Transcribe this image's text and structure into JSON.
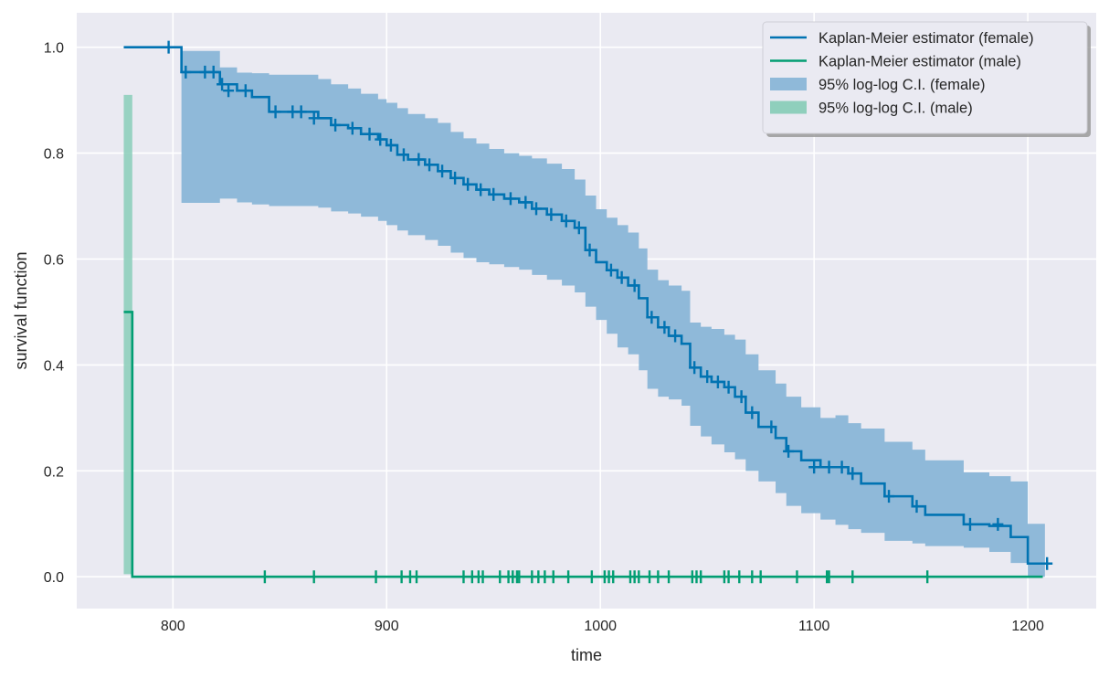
{
  "chart_data": {
    "type": "line",
    "title": "",
    "xlabel": "time",
    "ylabel": "survival function",
    "xlim": [
      755,
      1232
    ],
    "ylim": [
      -0.06,
      1.065
    ],
    "xticks": [
      800,
      900,
      1000,
      1100,
      1200
    ],
    "yticks": [
      0.0,
      0.2,
      0.4,
      0.6,
      0.8,
      1.0
    ],
    "grid": true,
    "legend_position": "top-right",
    "colors": {
      "background": "#EAEAF2",
      "grid": "#FFFFFF",
      "female": "#0173B2",
      "male": "#029E73",
      "female_ci": "#8FB9D9",
      "male_ci": "#8FCFBC"
    },
    "legend": [
      {
        "label": "Kaplan-Meier estimator (female)",
        "kind": "line",
        "series": "female"
      },
      {
        "label": "Kaplan-Meier estimator (male)",
        "kind": "line",
        "series": "male"
      },
      {
        "label": "95% log-log C.I. (female)",
        "kind": "patch",
        "series": "female_ci"
      },
      {
        "label": "95% log-log C.I. (male)",
        "kind": "patch",
        "series": "male_ci"
      }
    ],
    "series": [
      {
        "name": "Kaplan-Meier estimator (female)",
        "key": "female",
        "step": "post",
        "x": [
          777,
          804,
          822,
          830,
          837,
          845,
          868,
          874,
          882,
          888,
          896,
          900,
          905,
          910,
          918,
          924,
          930,
          936,
          942,
          948,
          955,
          962,
          968,
          975,
          982,
          988,
          993,
          998,
          1003,
          1008,
          1013,
          1018,
          1022,
          1027,
          1032,
          1038,
          1042,
          1047,
          1052,
          1058,
          1063,
          1068,
          1074,
          1082,
          1087,
          1094,
          1103,
          1110,
          1116,
          1122,
          1133,
          1146,
          1152,
          1170,
          1182,
          1192,
          1200,
          1208
        ],
        "y": [
          1.0,
          0.953,
          0.93,
          0.918,
          0.906,
          0.878,
          0.866,
          0.853,
          0.847,
          0.836,
          0.826,
          0.815,
          0.797,
          0.788,
          0.778,
          0.766,
          0.753,
          0.741,
          0.731,
          0.722,
          0.714,
          0.707,
          0.695,
          0.684,
          0.672,
          0.659,
          0.617,
          0.594,
          0.579,
          0.565,
          0.55,
          0.526,
          0.49,
          0.471,
          0.455,
          0.44,
          0.395,
          0.378,
          0.368,
          0.358,
          0.34,
          0.31,
          0.283,
          0.262,
          0.237,
          0.22,
          0.207,
          0.207,
          0.195,
          0.176,
          0.152,
          0.133,
          0.117,
          0.099,
          0.096,
          0.075,
          0.025,
          0.025
        ],
        "ci_lower": [
          0.999,
          0.706,
          0.714,
          0.707,
          0.703,
          0.7,
          0.697,
          0.69,
          0.686,
          0.68,
          0.672,
          0.664,
          0.654,
          0.645,
          0.636,
          0.625,
          0.612,
          0.602,
          0.594,
          0.59,
          0.585,
          0.58,
          0.57,
          0.561,
          0.55,
          0.537,
          0.51,
          0.485,
          0.459,
          0.433,
          0.42,
          0.39,
          0.355,
          0.34,
          0.335,
          0.323,
          0.285,
          0.265,
          0.25,
          0.235,
          0.222,
          0.2,
          0.18,
          0.158,
          0.134,
          0.12,
          0.108,
          0.098,
          0.09,
          0.083,
          0.068,
          0.063,
          0.058,
          0.055,
          0.047,
          0.026,
          0.0,
          0.0
        ],
        "ci_upper": [
          1.0,
          0.993,
          0.962,
          0.952,
          0.951,
          0.948,
          0.94,
          0.93,
          0.922,
          0.912,
          0.902,
          0.895,
          0.885,
          0.874,
          0.866,
          0.857,
          0.84,
          0.828,
          0.818,
          0.808,
          0.8,
          0.795,
          0.79,
          0.78,
          0.77,
          0.75,
          0.72,
          0.694,
          0.678,
          0.664,
          0.65,
          0.62,
          0.58,
          0.56,
          0.55,
          0.54,
          0.48,
          0.472,
          0.468,
          0.457,
          0.448,
          0.42,
          0.39,
          0.365,
          0.34,
          0.32,
          0.3,
          0.305,
          0.29,
          0.28,
          0.255,
          0.24,
          0.22,
          0.197,
          0.19,
          0.18,
          0.1,
          0.1
        ]
      },
      {
        "name": "Kaplan-Meier estimator (male)",
        "key": "male",
        "step": "post",
        "x": [
          777,
          781,
          1207
        ],
        "y": [
          0.5,
          0.0,
          0.0
        ],
        "ci_lower": [
          0.005,
          0.0,
          0.0
        ],
        "ci_upper": [
          0.91,
          0.0,
          0.0
        ]
      }
    ],
    "censored": {
      "female": [
        [
          798,
          1.0
        ],
        [
          806,
          0.953
        ],
        [
          815,
          0.953
        ],
        [
          819,
          0.953
        ],
        [
          823,
          0.93
        ],
        [
          826,
          0.918
        ],
        [
          834,
          0.918
        ],
        [
          848,
          0.878
        ],
        [
          856,
          0.878
        ],
        [
          860,
          0.878
        ],
        [
          866,
          0.866
        ],
        [
          876,
          0.853
        ],
        [
          884,
          0.847
        ],
        [
          892,
          0.836
        ],
        [
          897,
          0.826
        ],
        [
          902,
          0.815
        ],
        [
          908,
          0.797
        ],
        [
          915,
          0.788
        ],
        [
          920,
          0.778
        ],
        [
          926,
          0.766
        ],
        [
          932,
          0.753
        ],
        [
          938,
          0.741
        ],
        [
          944,
          0.731
        ],
        [
          950,
          0.722
        ],
        [
          958,
          0.714
        ],
        [
          965,
          0.707
        ],
        [
          970,
          0.695
        ],
        [
          977,
          0.684
        ],
        [
          984,
          0.672
        ],
        [
          990,
          0.659
        ],
        [
          995,
          0.617
        ],
        [
          1005,
          0.579
        ],
        [
          1010,
          0.565
        ],
        [
          1016,
          0.55
        ],
        [
          1024,
          0.49
        ],
        [
          1030,
          0.471
        ],
        [
          1035,
          0.455
        ],
        [
          1044,
          0.395
        ],
        [
          1050,
          0.378
        ],
        [
          1055,
          0.368
        ],
        [
          1060,
          0.358
        ],
        [
          1066,
          0.34
        ],
        [
          1071,
          0.31
        ],
        [
          1080,
          0.283
        ],
        [
          1088,
          0.237
        ],
        [
          1100,
          0.207
        ],
        [
          1107,
          0.207
        ],
        [
          1113,
          0.207
        ],
        [
          1118,
          0.195
        ],
        [
          1135,
          0.152
        ],
        [
          1148,
          0.133
        ],
        [
          1173,
          0.099
        ],
        [
          1186,
          0.099
        ],
        [
          1209,
          0.025
        ]
      ],
      "male": [
        843,
        866,
        895,
        907,
        911,
        914,
        936,
        940,
        943,
        945,
        953,
        957,
        959,
        961,
        962,
        968,
        971,
        974,
        978,
        985,
        996,
        1002,
        1004,
        1006,
        1014,
        1016,
        1018,
        1023,
        1027,
        1032,
        1043,
        1045,
        1047,
        1058,
        1060,
        1065,
        1071,
        1075,
        1092,
        1106,
        1107,
        1118,
        1153
      ]
    }
  }
}
